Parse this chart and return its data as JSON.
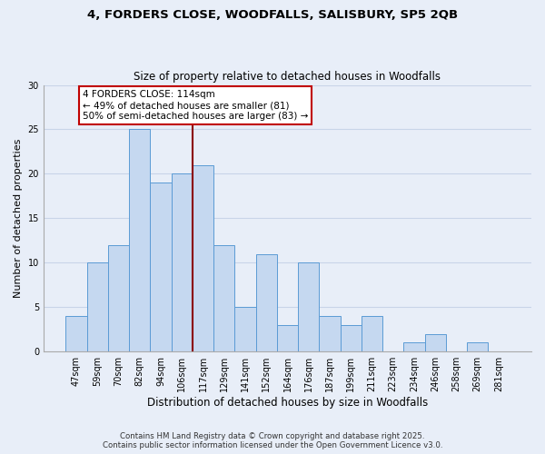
{
  "title1": "4, FORDERS CLOSE, WOODFALLS, SALISBURY, SP5 2QB",
  "title2": "Size of property relative to detached houses in Woodfalls",
  "xlabel": "Distribution of detached houses by size in Woodfalls",
  "ylabel": "Number of detached properties",
  "bar_labels": [
    "47sqm",
    "59sqm",
    "70sqm",
    "82sqm",
    "94sqm",
    "106sqm",
    "117sqm",
    "129sqm",
    "141sqm",
    "152sqm",
    "164sqm",
    "176sqm",
    "187sqm",
    "199sqm",
    "211sqm",
    "223sqm",
    "234sqm",
    "246sqm",
    "258sqm",
    "269sqm",
    "281sqm"
  ],
  "bar_values": [
    4,
    10,
    12,
    25,
    19,
    20,
    21,
    12,
    5,
    11,
    3,
    10,
    4,
    3,
    4,
    0,
    1,
    2,
    0,
    1,
    0
  ],
  "bar_color": "#c5d8f0",
  "bar_edge_color": "#5b9bd5",
  "vline_color": "#8b0000",
  "vline_x_idx": 6,
  "annotation_title": "4 FORDERS CLOSE: 114sqm",
  "annotation_line1": "← 49% of detached houses are smaller (81)",
  "annotation_line2": "50% of semi-detached houses are larger (83) →",
  "annotation_box_color": "white",
  "annotation_box_edge": "#c00000",
  "ylim": [
    0,
    30
  ],
  "yticks": [
    0,
    5,
    10,
    15,
    20,
    25,
    30
  ],
  "grid_color": "#c8d4e8",
  "bg_color": "#e8eef8",
  "footer1": "Contains HM Land Registry data © Crown copyright and database right 2025.",
  "footer2": "Contains public sector information licensed under the Open Government Licence v3.0."
}
